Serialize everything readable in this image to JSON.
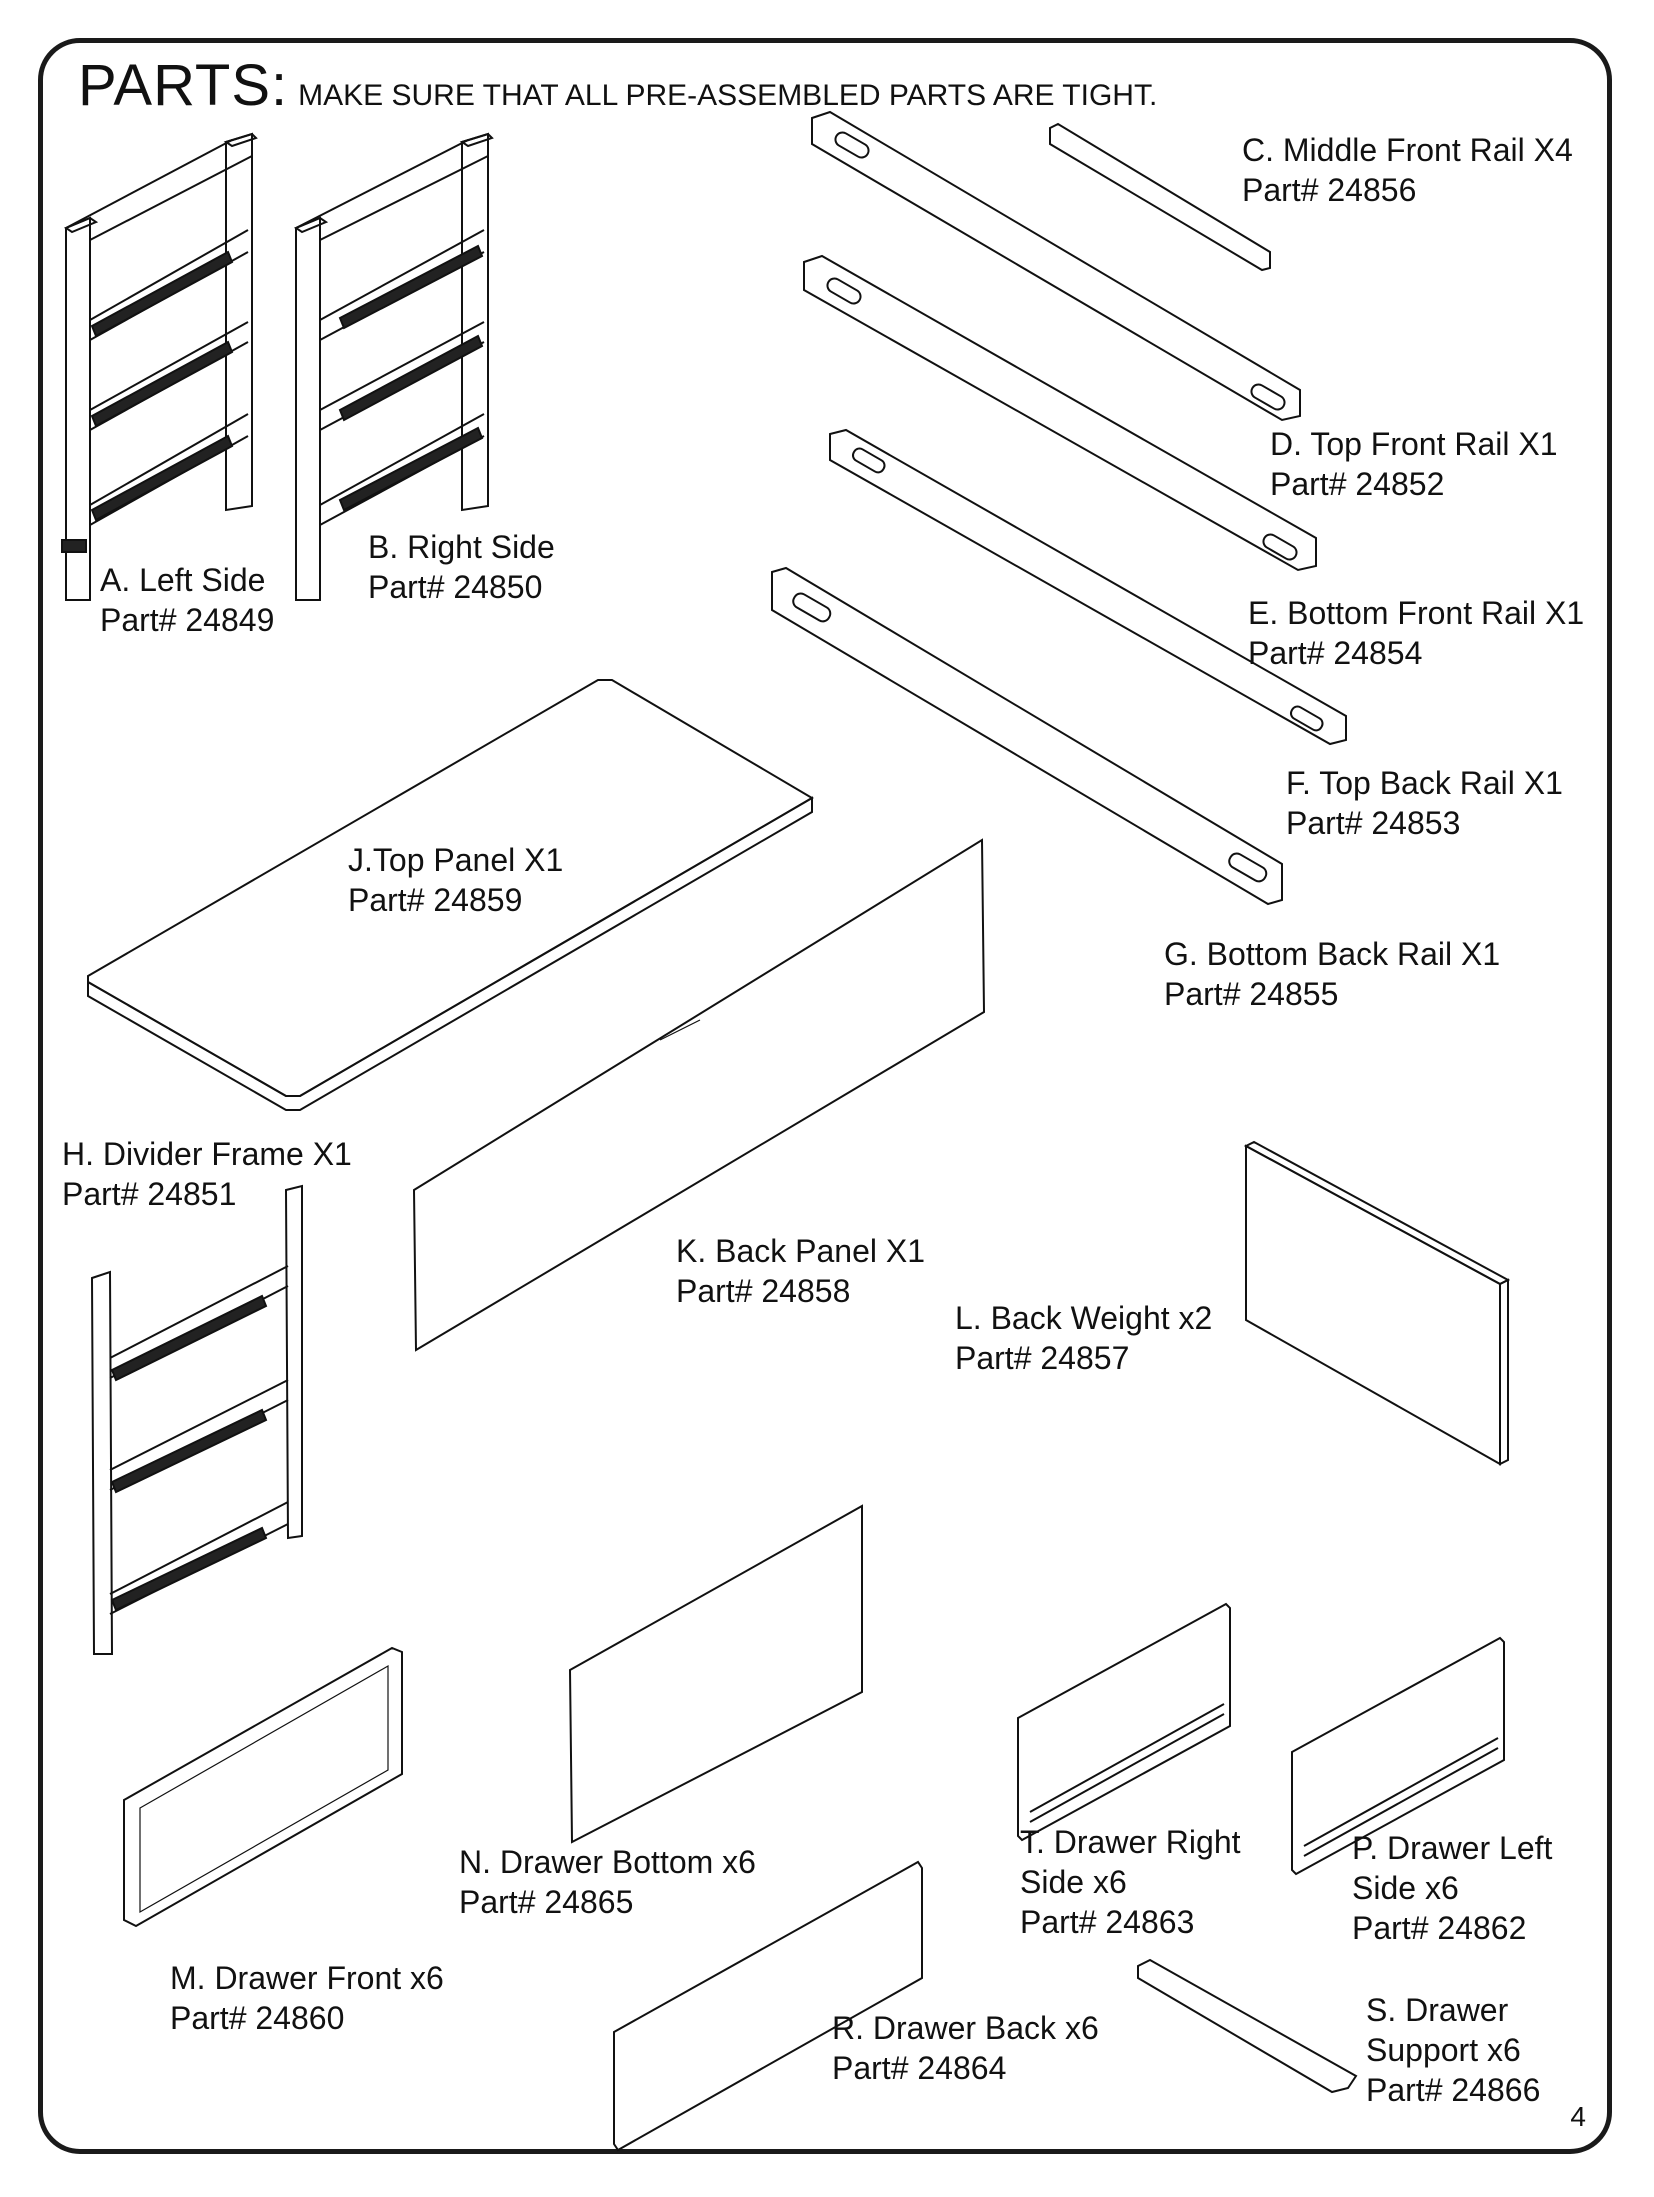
{
  "header": {
    "title": "PARTS:",
    "note": "MAKE SURE THAT ALL PRE-ASSEMBLED PARTS ARE TIGHT."
  },
  "parts": {
    "a": {
      "name": "A. Left Side",
      "number": "Part# 24849"
    },
    "b": {
      "name": "B. Right Side",
      "number": "Part# 24850"
    },
    "c": {
      "name": "C. Middle Front Rail X4",
      "number": "Part# 24856"
    },
    "d": {
      "name": "D. Top Front Rail X1",
      "number": "Part# 24852"
    },
    "e": {
      "name": "E. Bottom Front Rail X1",
      "number": "Part# 24854"
    },
    "f": {
      "name": "F. Top Back Rail X1",
      "number": "Part# 24853"
    },
    "g": {
      "name": "G. Bottom Back Rail X1",
      "number": "Part# 24855"
    },
    "h": {
      "name": "H. Divider Frame X1",
      "number": "Part# 24851"
    },
    "j": {
      "name": "J.Top Panel X1",
      "number": "Part# 24859"
    },
    "k": {
      "name": "K. Back Panel X1",
      "number": "Part# 24858"
    },
    "l": {
      "name": "L. Back Weight x2",
      "number": "Part# 24857"
    },
    "m": {
      "name": "M. Drawer Front x6",
      "number": "Part# 24860"
    },
    "n": {
      "name": "N. Drawer Bottom x6",
      "number": "Part# 24865"
    },
    "p": {
      "name_line1": "P. Drawer Left",
      "name_line2": "Side x6",
      "number": "Part# 24862"
    },
    "r": {
      "name": "R. Drawer Back x6",
      "number": "Part# 24864"
    },
    "s": {
      "name_line1": "S. Drawer",
      "name_line2": "Support x6",
      "number": "Part# 24866"
    },
    "t": {
      "name_line1": "T. Drawer Right",
      "name_line2": "Side x6",
      "number": "Part# 24863"
    }
  },
  "page_number": "4"
}
